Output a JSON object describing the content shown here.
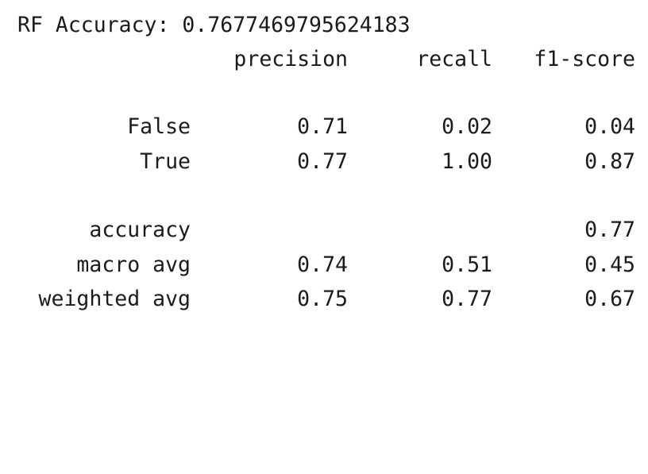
{
  "accuracy_line": "RF Accuracy: 0.7677469795624183",
  "report": {
    "headers": {
      "precision": "precision",
      "recall": "recall",
      "f1": "f1-score"
    },
    "rows": [
      {
        "label": "False",
        "precision": "0.71",
        "recall": "0.02",
        "f1": "0.04"
      },
      {
        "label": "True",
        "precision": "0.77",
        "recall": "1.00",
        "f1": "0.87"
      }
    ],
    "summary": [
      {
        "label": "accuracy",
        "precision": "",
        "recall": "",
        "f1": "0.77"
      },
      {
        "label": "macro avg",
        "precision": "0.74",
        "recall": "0.51",
        "f1": "0.45"
      },
      {
        "label": "weighted avg",
        "precision": "0.75",
        "recall": "0.77",
        "f1": "0.67"
      }
    ]
  }
}
